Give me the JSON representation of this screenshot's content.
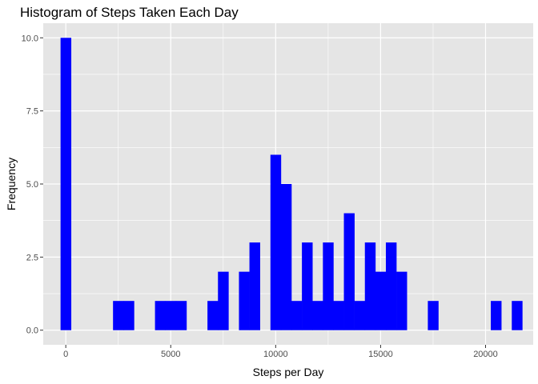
{
  "chart_data": {
    "type": "bar",
    "title": "Histogram of Steps Taken Each Day",
    "xlabel": "Steps per Day",
    "ylabel": "Frequency",
    "xlim": [
      -1075,
      22270
    ],
    "ylim": [
      -0.5,
      10.5
    ],
    "x_ticks": [
      0,
      5000,
      10000,
      15000,
      20000
    ],
    "x_tick_labels": [
      "0",
      "5000",
      "10000",
      "15000",
      "20000"
    ],
    "y_ticks": [
      0,
      2.5,
      5,
      7.5,
      10
    ],
    "y_tick_labels": [
      "0.0",
      "2.5",
      "5.0",
      "7.5",
      "10.0"
    ],
    "bin_width": 500,
    "bar_color": "#0000ff",
    "panel_color": "#e5e5e5",
    "grid_color": "#ffffff",
    "grid": true,
    "legend": "none",
    "bins": [
      {
        "start": -250,
        "count": 10
      },
      {
        "start": 2250,
        "count": 1
      },
      {
        "start": 2750,
        "count": 1
      },
      {
        "start": 4250,
        "count": 1
      },
      {
        "start": 4750,
        "count": 1
      },
      {
        "start": 5250,
        "count": 1
      },
      {
        "start": 6750,
        "count": 1
      },
      {
        "start": 7250,
        "count": 2
      },
      {
        "start": 8250,
        "count": 2
      },
      {
        "start": 8750,
        "count": 3
      },
      {
        "start": 9750,
        "count": 6
      },
      {
        "start": 10250,
        "count": 5
      },
      {
        "start": 10750,
        "count": 1
      },
      {
        "start": 11250,
        "count": 3
      },
      {
        "start": 11750,
        "count": 1
      },
      {
        "start": 12250,
        "count": 3
      },
      {
        "start": 12750,
        "count": 1
      },
      {
        "start": 13250,
        "count": 4
      },
      {
        "start": 13750,
        "count": 1
      },
      {
        "start": 14250,
        "count": 3
      },
      {
        "start": 14750,
        "count": 2
      },
      {
        "start": 15250,
        "count": 3
      },
      {
        "start": 15750,
        "count": 2
      },
      {
        "start": 17250,
        "count": 1
      },
      {
        "start": 20250,
        "count": 1
      },
      {
        "start": 21250,
        "count": 1
      }
    ]
  }
}
